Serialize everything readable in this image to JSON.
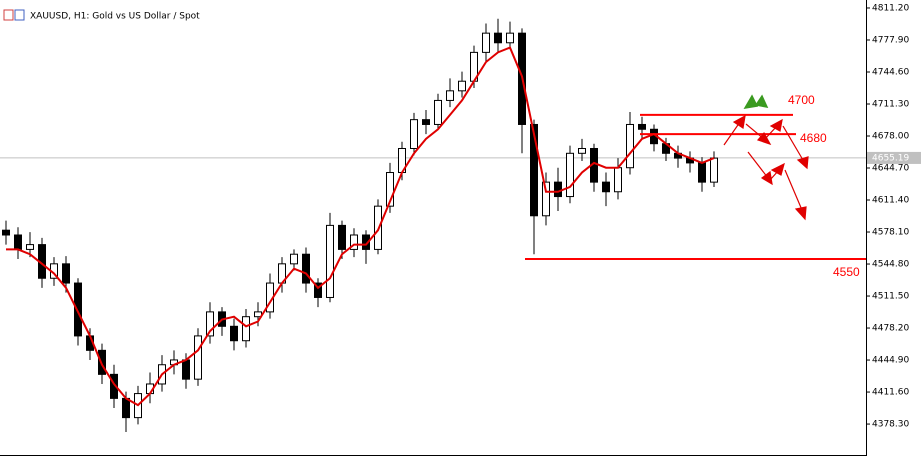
{
  "chart_data": {
    "type": "candlestick",
    "title": "XAUUSD, H1:  Gold vs US Dollar / Spot",
    "open": [
      4580,
      4575,
      4560,
      4565,
      4530,
      4545,
      4525,
      4470,
      4455,
      4430,
      4405,
      4385,
      4410,
      4420,
      4440,
      4445,
      4425,
      4470,
      4495,
      4480,
      4465,
      4490,
      4495,
      4525,
      4545,
      4555,
      4525,
      4510,
      4585,
      4560,
      4575,
      4560,
      4605,
      4640,
      4665,
      4695,
      4690,
      4715,
      4725,
      4735,
      4765,
      4785,
      4775,
      4785,
      4690,
      4595,
      4630,
      4615,
      4660,
      4665,
      4630,
      4620,
      4645,
      4690,
      4685,
      4670,
      4660,
      4655,
      4650,
      4630
    ],
    "high": [
      4590,
      4583,
      4578,
      4572,
      4552,
      4553,
      4530,
      4478,
      4462,
      4440,
      4412,
      4418,
      4432,
      4450,
      4455,
      4452,
      4478,
      4505,
      4500,
      4488,
      4498,
      4505,
      4535,
      4552,
      4560,
      4562,
      4530,
      4598,
      4590,
      4582,
      4580,
      4612,
      4650,
      4672,
      4702,
      4705,
      4722,
      4738,
      4745,
      4772,
      4795,
      4800,
      4797,
      4790,
      4695,
      4640,
      4645,
      4668,
      4675,
      4670,
      4640,
      4655,
      4703,
      4698,
      4690,
      4676,
      4668,
      4662,
      4656,
      4662
    ],
    "low": [
      4565,
      4550,
      4552,
      4520,
      4522,
      4515,
      4460,
      4445,
      4420,
      4395,
      4370,
      4378,
      4400,
      4412,
      4430,
      4415,
      4418,
      4462,
      4470,
      4455,
      4458,
      4480,
      4488,
      4515,
      4538,
      4515,
      4500,
      4505,
      4550,
      4552,
      4545,
      4555,
      4598,
      4632,
      4658,
      4680,
      4685,
      4708,
      4718,
      4728,
      4755,
      4765,
      4768,
      4660,
      4555,
      4585,
      4600,
      4608,
      4652,
      4620,
      4605,
      4612,
      4638,
      4675,
      4662,
      4652,
      4645,
      4640,
      4620,
      4625
    ],
    "close": [
      4575,
      4560,
      4565,
      4530,
      4545,
      4525,
      4470,
      4455,
      4430,
      4405,
      4385,
      4410,
      4420,
      4440,
      4445,
      4425,
      4470,
      4495,
      4480,
      4465,
      4490,
      4495,
      4525,
      4545,
      4555,
      4525,
      4510,
      4585,
      4560,
      4575,
      4560,
      4605,
      4640,
      4665,
      4695,
      4690,
      4715,
      4725,
      4735,
      4765,
      4785,
      4775,
      4785,
      4690,
      4595,
      4630,
      4615,
      4660,
      4665,
      4630,
      4620,
      4645,
      4690,
      4685,
      4670,
      4660,
      4655,
      4650,
      4630,
      4655
    ],
    "moving_average": {
      "color": "#e00000",
      "values": [
        4560,
        4560,
        4555,
        4545,
        4535,
        4520,
        4495,
        4470,
        4440,
        4420,
        4405,
        4398,
        4410,
        4430,
        4440,
        4445,
        4455,
        4475,
        4487,
        4490,
        4480,
        4485,
        4505,
        4525,
        4540,
        4535,
        4520,
        4530,
        4555,
        4565,
        4565,
        4580,
        4610,
        4640,
        4660,
        4675,
        4685,
        4700,
        4715,
        4735,
        4755,
        4765,
        4770,
        4740,
        4680,
        4620,
        4620,
        4625,
        4640,
        4650,
        4645,
        4645,
        4660,
        4675,
        4680,
        4670,
        4660,
        4655,
        4650,
        4655
      ]
    },
    "levels": [
      4700,
      4680,
      4550
    ],
    "level_color": "#ff0000",
    "last_price": {
      "value": 4655.19,
      "label": "4655.19"
    },
    "ylim": [
      4346.1,
      4819.5
    ],
    "yticks": [
      {
        "value": 4811.2,
        "label": "4811.20"
      },
      {
        "value": 4777.9,
        "label": "4777.90"
      },
      {
        "value": 4744.6,
        "label": "4744.60"
      },
      {
        "value": 4711.3,
        "label": "4711.30"
      },
      {
        "value": 4678,
        "label": "4678.00"
      },
      {
        "value": 4644.7,
        "label": "4644.70"
      },
      {
        "value": 4611.4,
        "label": "4611.40"
      },
      {
        "value": 4578.1,
        "label": "4578.10"
      },
      {
        "value": 4544.8,
        "label": "4544.80"
      },
      {
        "value": 4511.5,
        "label": "4511.50"
      },
      {
        "value": 4478.2,
        "label": "4478.20"
      },
      {
        "value": 4444.9,
        "label": "4444.90"
      },
      {
        "value": 4411.6,
        "label": "4411.60"
      },
      {
        "value": 4378.3,
        "label": "4378.30"
      }
    ]
  }
}
